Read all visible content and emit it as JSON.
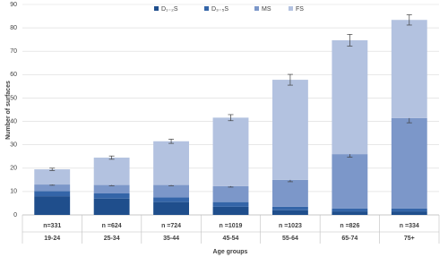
{
  "chart_data": {
    "type": "stacked-bar",
    "x_label": "Age groups",
    "y_label": "Number of surfaces",
    "categories": [
      "19-24",
      "25-34",
      "35-44",
      "45-54",
      "55-64",
      "65-74",
      "75+"
    ],
    "n_labels": [
      "n=331",
      "n =624",
      "n =724",
      "n =1019",
      "n =1023",
      "n =826",
      "n =334"
    ],
    "series": [
      {
        "name": "D₁₋₂S",
        "color": "#1f4e8c",
        "values": [
          8,
          7,
          5.5,
          3.5,
          2,
          1.5,
          1.5
        ]
      },
      {
        "name": "D₃₋₅S",
        "color": "#3465a8",
        "values": [
          2.2,
          2.2,
          2,
          2,
          1.5,
          1.2,
          1.2
        ]
      },
      {
        "name": "MS",
        "color": "#7c97c9",
        "values": [
          2.8,
          3.6,
          5.3,
          6.8,
          11.5,
          23.3,
          38.7
        ],
        "errors": [
          0.3,
          0.3,
          0.3,
          0.4,
          0.8,
          1.3,
          2
        ]
      },
      {
        "name": "FS",
        "color": "#b3c2e0",
        "values": [
          6.5,
          11.7,
          18.7,
          29.3,
          42.8,
          48.7,
          42
        ],
        "errors": [
          0.5,
          0.7,
          0.9,
          1.3,
          2.3,
          2.5,
          2.2
        ]
      }
    ],
    "ylim": [
      0,
      90
    ],
    "yticks": [
      0,
      10,
      20,
      30,
      40,
      50,
      60,
      70,
      80,
      90
    ],
    "grid": true
  }
}
